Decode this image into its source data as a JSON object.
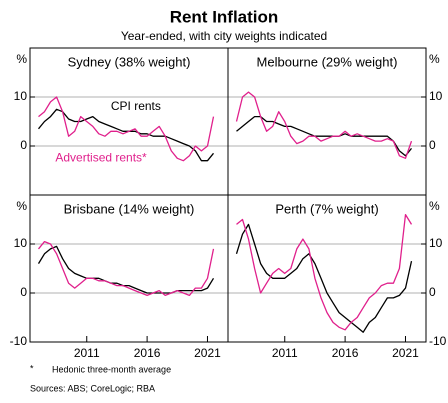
{
  "title": "Rent Inflation",
  "subtitle": "Year-ended, with city weights indicated",
  "footnote_marker": "*",
  "footnote": "Hedonic three-month average",
  "sources": "Sources: ABS; CoreLogic; RBA",
  "chart_data": [
    {
      "type": "line",
      "title": "Sydney (38% weight)",
      "ylabel": "%",
      "yaxis_side": "left",
      "xlim": [
        2006.3,
        2022.7
      ],
      "ylim": [
        -10,
        20
      ],
      "yticks": [
        0,
        10
      ],
      "grid": true,
      "annotations": [
        {
          "text": "CPI rents",
          "color": "#000000",
          "x": 2013,
          "y": 8
        },
        {
          "text": "Advertised rents*",
          "color": "#e0208c",
          "x": 2008.4,
          "y": -2.5
        }
      ],
      "series": [
        {
          "name": "CPI rents",
          "color": "#000000",
          "x": [
            2007,
            2007.5,
            2008,
            2008.5,
            2009,
            2009.5,
            2010,
            2010.5,
            2011,
            2011.5,
            2012,
            2012.5,
            2013,
            2013.5,
            2014,
            2014.5,
            2015,
            2015.5,
            2016,
            2016.5,
            2017,
            2017.5,
            2018,
            2018.5,
            2019,
            2019.5,
            2020,
            2020.5,
            2021,
            2021.5
          ],
          "values": [
            3.5,
            5,
            6,
            7.5,
            7,
            5.5,
            5,
            5,
            5.5,
            6,
            5,
            4.5,
            4,
            3.5,
            3,
            3,
            3,
            2.5,
            2.5,
            2,
            2,
            2,
            1.5,
            1,
            0.5,
            0,
            -1,
            -3,
            -3,
            -1.5
          ]
        },
        {
          "name": "Advertised rents*",
          "color": "#e0208c",
          "x": [
            2007,
            2007.5,
            2008,
            2008.5,
            2009,
            2009.5,
            2010,
            2010.5,
            2011,
            2011.5,
            2012,
            2012.5,
            2013,
            2013.5,
            2014,
            2014.5,
            2015,
            2015.5,
            2016,
            2016.5,
            2017,
            2017.5,
            2018,
            2018.5,
            2019,
            2019.5,
            2020,
            2020.5,
            2021,
            2021.5
          ],
          "values": [
            6,
            7,
            9,
            10,
            7,
            2,
            3,
            6,
            5,
            4,
            2.5,
            2,
            3,
            3,
            2.5,
            3,
            3.5,
            2,
            2,
            3,
            4,
            2,
            -1,
            -2.5,
            -3,
            -2,
            0,
            -1,
            0,
            6
          ]
        }
      ]
    },
    {
      "type": "line",
      "title": "Melbourne (29% weight)",
      "ylabel": "%",
      "yaxis_side": "right",
      "xlim": [
        2006.3,
        2022.7
      ],
      "ylim": [
        -10,
        20
      ],
      "yticks": [
        0,
        10
      ],
      "grid": true,
      "series": [
        {
          "name": "CPI rents",
          "color": "#000000",
          "x": [
            2007,
            2007.5,
            2008,
            2008.5,
            2009,
            2009.5,
            2010,
            2010.5,
            2011,
            2011.5,
            2012,
            2012.5,
            2013,
            2013.5,
            2014,
            2014.5,
            2015,
            2015.5,
            2016,
            2016.5,
            2017,
            2017.5,
            2018,
            2018.5,
            2019,
            2019.5,
            2020,
            2020.5,
            2021,
            2021.5
          ],
          "values": [
            3,
            4,
            5,
            6,
            6,
            5,
            5,
            4.5,
            4,
            4,
            3.5,
            3,
            2.5,
            2,
            2,
            2,
            2,
            2,
            2.5,
            2,
            2,
            2,
            2,
            2,
            2,
            2,
            1,
            -1,
            -2,
            -0.5
          ]
        },
        {
          "name": "Advertised rents*",
          "color": "#e0208c",
          "x": [
            2007,
            2007.5,
            2008,
            2008.5,
            2009,
            2009.5,
            2010,
            2010.5,
            2011,
            2011.5,
            2012,
            2012.5,
            2013,
            2013.5,
            2014,
            2014.5,
            2015,
            2015.5,
            2016,
            2016.5,
            2017,
            2017.5,
            2018,
            2018.5,
            2019,
            2019.5,
            2020,
            2020.5,
            2021,
            2021.5
          ],
          "values": [
            5,
            10,
            11,
            10,
            6,
            3,
            4,
            7,
            5,
            2,
            0.5,
            1,
            2,
            2,
            1,
            1.5,
            2,
            2,
            3,
            2,
            2.5,
            2,
            1.5,
            1,
            1,
            1.5,
            1,
            -2,
            -2.5,
            1
          ]
        }
      ]
    },
    {
      "type": "line",
      "title": "Brisbane (14% weight)",
      "ylabel": "%",
      "yaxis_side": "left",
      "xlim": [
        2006.3,
        2022.7
      ],
      "ylim": [
        -10,
        20
      ],
      "yticks": [
        -10,
        0,
        10
      ],
      "xticks": [
        2011,
        2016,
        2021
      ],
      "grid": true,
      "series": [
        {
          "name": "CPI rents",
          "color": "#000000",
          "x": [
            2007,
            2007.5,
            2008,
            2008.5,
            2009,
            2009.5,
            2010,
            2010.5,
            2011,
            2011.5,
            2012,
            2012.5,
            2013,
            2013.5,
            2014,
            2014.5,
            2015,
            2015.5,
            2016,
            2016.5,
            2017,
            2017.5,
            2018,
            2018.5,
            2019,
            2019.5,
            2020,
            2020.5,
            2021,
            2021.5
          ],
          "values": [
            6,
            8,
            9,
            9.5,
            7,
            5,
            4,
            3.5,
            3,
            3,
            3,
            2.5,
            2,
            2,
            1.5,
            1.5,
            1,
            0.5,
            0,
            0,
            0,
            0,
            0,
            0.5,
            0.5,
            0.5,
            0.5,
            0.5,
            1,
            3
          ]
        },
        {
          "name": "Advertised rents*",
          "color": "#e0208c",
          "x": [
            2007,
            2007.5,
            2008,
            2008.5,
            2009,
            2009.5,
            2010,
            2010.5,
            2011,
            2011.5,
            2012,
            2012.5,
            2013,
            2013.5,
            2014,
            2014.5,
            2015,
            2015.5,
            2016,
            2016.5,
            2017,
            2017.5,
            2018,
            2018.5,
            2019,
            2019.5,
            2020,
            2020.5,
            2021,
            2021.5
          ],
          "values": [
            9,
            10.5,
            10,
            8,
            5,
            2,
            1,
            2,
            3,
            3,
            2.5,
            2.5,
            2,
            1.5,
            1.5,
            1,
            0.5,
            0,
            -0.5,
            0,
            0.5,
            -0.5,
            0,
            0.5,
            0,
            -0.5,
            1,
            1,
            3,
            9
          ]
        }
      ]
    },
    {
      "type": "line",
      "title": "Perth (7% weight)",
      "ylabel": "%",
      "yaxis_side": "right",
      "xlim": [
        2006.3,
        2022.7
      ],
      "ylim": [
        -10,
        20
      ],
      "yticks": [
        -10,
        0,
        10
      ],
      "xticks": [
        2011,
        2016,
        2021
      ],
      "grid": true,
      "series": [
        {
          "name": "CPI rents",
          "color": "#000000",
          "x": [
            2007,
            2007.5,
            2008,
            2008.5,
            2009,
            2009.5,
            2010,
            2010.5,
            2011,
            2011.5,
            2012,
            2012.5,
            2013,
            2013.5,
            2014,
            2014.5,
            2015,
            2015.5,
            2016,
            2016.5,
            2017,
            2017.5,
            2018,
            2018.5,
            2019,
            2019.5,
            2020,
            2020.5,
            2021,
            2021.5
          ],
          "values": [
            8,
            12,
            14,
            10,
            6,
            4,
            3,
            3,
            3,
            4,
            5,
            7,
            8,
            6,
            3,
            0,
            -2,
            -4,
            -5,
            -6,
            -7,
            -8,
            -6,
            -5,
            -3,
            -1,
            -1,
            -0.5,
            1,
            6.5
          ]
        },
        {
          "name": "Advertised rents*",
          "color": "#e0208c",
          "x": [
            2007,
            2007.5,
            2008,
            2008.5,
            2009,
            2009.5,
            2010,
            2010.5,
            2011,
            2011.5,
            2012,
            2012.5,
            2013,
            2013.5,
            2014,
            2014.5,
            2015,
            2015.5,
            2016,
            2016.5,
            2017,
            2017.5,
            2018,
            2018.5,
            2019,
            2019.5,
            2020,
            2020.5,
            2021,
            2021.5
          ],
          "values": [
            14,
            15,
            11,
            5,
            0,
            2,
            4,
            5,
            4,
            5,
            9,
            11,
            9,
            3,
            -1,
            -4,
            -6,
            -7,
            -7.5,
            -6,
            -5,
            -3,
            -1,
            0,
            1.5,
            2,
            2,
            5,
            16,
            14
          ]
        }
      ]
    }
  ]
}
